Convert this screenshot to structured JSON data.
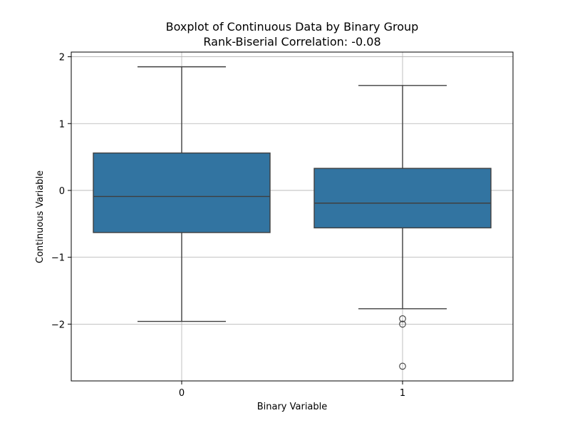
{
  "chart_data": {
    "type": "boxplot",
    "title": "Boxplot of Continuous Data by Binary Group",
    "subtitle": "Rank-Biserial Correlation: -0.08",
    "xlabel": "Binary Variable",
    "ylabel": "Continuous Variable",
    "categories": [
      "0",
      "1"
    ],
    "boxes": [
      {
        "category": "0",
        "whisker_low": -1.96,
        "q1": -0.63,
        "median": -0.09,
        "q3": 0.56,
        "whisker_high": 1.85,
        "outliers": []
      },
      {
        "category": "1",
        "whisker_low": -1.77,
        "q1": -0.56,
        "median": -0.19,
        "q3": 0.33,
        "whisker_high": 1.57,
        "outliers": [
          -1.92,
          -2.0,
          -2.63
        ]
      }
    ],
    "ylim": [
      -2.85,
      2.07
    ],
    "yticks": [
      {
        "value": 2,
        "label": "2"
      },
      {
        "value": 1,
        "label": "1"
      },
      {
        "value": 0,
        "label": "0"
      },
      {
        "value": -1,
        "label": "−1"
      },
      {
        "value": -2,
        "label": "−2"
      }
    ],
    "grid": true,
    "colors": {
      "box_fill": "#3274a1",
      "line": "#3f3f3f",
      "grid": "#b0b0b0",
      "axis": "#000000"
    }
  }
}
